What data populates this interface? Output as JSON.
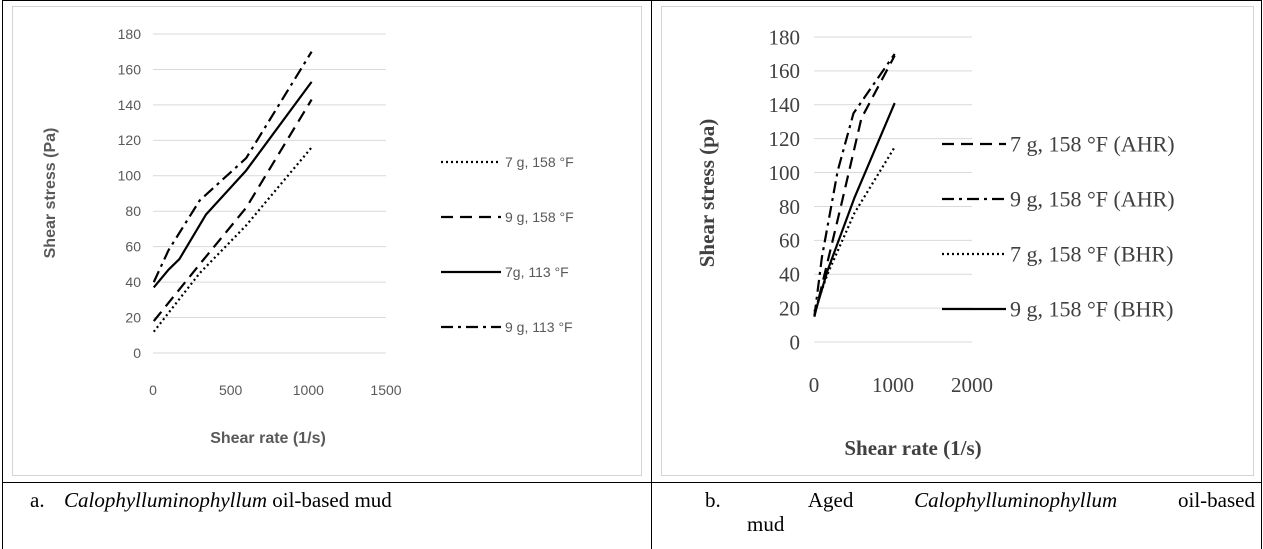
{
  "chart_data": [
    {
      "type": "line",
      "title": "",
      "xlabel": "Shear rate (1/s)",
      "ylabel": "Shear stress (Pa)",
      "xlim": [
        0,
        1500
      ],
      "ylim": [
        0,
        180
      ],
      "x_ticks": [
        0,
        500,
        1000,
        1500
      ],
      "y_ticks": [
        0,
        20,
        40,
        60,
        80,
        100,
        120,
        140,
        160,
        180
      ],
      "grid": "horizontal",
      "legend": "right",
      "series": [
        {
          "name": "7 g, 158 °F",
          "dash": "dotted",
          "x": [
            5,
            300,
            600,
            1021
          ],
          "y": [
            12,
            45,
            72,
            116
          ]
        },
        {
          "name": "9 g, 158 °F",
          "dash": "dashed",
          "x": [
            5,
            300,
            600,
            1021
          ],
          "y": [
            18,
            50,
            82,
            143
          ]
        },
        {
          "name": "7g, 113 °F",
          "dash": "solid",
          "x": [
            5,
            100,
            170,
            340,
            600,
            1021
          ],
          "y": [
            37,
            47,
            53,
            78,
            103,
            153
          ]
        },
        {
          "name": "9 g, 113 °F",
          "dash": "dashdot",
          "x": [
            5,
            100,
            300,
            600,
            1021
          ],
          "y": [
            40,
            58,
            86,
            110,
            170
          ]
        }
      ]
    },
    {
      "type": "line",
      "title": "",
      "xlabel": "Shear rate (1/s)",
      "ylabel": "Shear stress (pa)",
      "xlim": [
        0,
        2000
      ],
      "ylim": [
        0,
        180
      ],
      "x_ticks": [
        0,
        1000,
        2000
      ],
      "y_ticks": [
        0,
        20,
        40,
        60,
        80,
        100,
        120,
        140,
        160,
        180
      ],
      "grid": "horizontal",
      "legend": "right",
      "series": [
        {
          "name": "7 g, 158 °F (AHR)",
          "dash": "dashed",
          "x": [
            5,
            170,
            340,
            600,
            1021
          ],
          "y": [
            15,
            47,
            80,
            132,
            169
          ]
        },
        {
          "name": "9 g, 158 °F (AHR)",
          "dash": "dashdot",
          "x": [
            5,
            100,
            300,
            500,
            1021
          ],
          "y": [
            15,
            50,
            101,
            135,
            170
          ]
        },
        {
          "name": "7 g, 158 °F (BHR)",
          "dash": "dotted",
          "x": [
            5,
            170,
            511,
            1021
          ],
          "y": [
            18,
            40,
            76,
            115
          ]
        },
        {
          "name": "9 g, 158 °F (BHR)",
          "dash": "solid",
          "x": [
            5,
            170,
            511,
            1021
          ],
          "y": [
            16,
            42,
            85,
            141
          ]
        }
      ]
    }
  ],
  "captions": [
    {
      "marker": "a.",
      "text": "Calophylluminophyllum",
      "rest": " oil-based mud"
    },
    {
      "marker": "b.",
      "text": "Calophylluminophyllum",
      "word1": "Aged",
      "rest": "oil-based",
      "line2": "mud"
    }
  ]
}
